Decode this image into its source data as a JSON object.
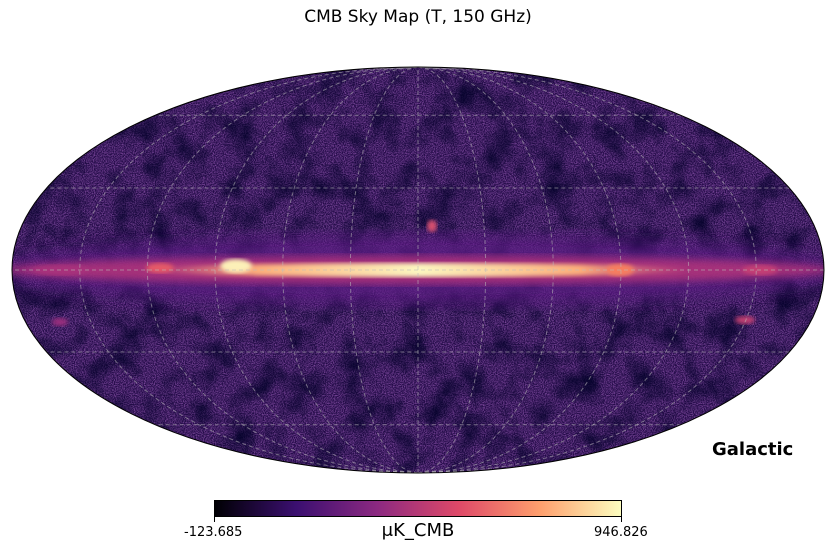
{
  "chart_data": {
    "type": "heatmap",
    "projection": "mollweide",
    "title": "CMB Sky Map (T, 150 GHz)",
    "coordinate_system": "Galactic",
    "colorbar": {
      "min": -123.685,
      "max": 946.826,
      "min_label": "-123.685",
      "max_label": "946.826",
      "unit": "μK_CMB",
      "colormap": "magma",
      "colors": [
        "#000004",
        "#3b0f70",
        "#8c2981",
        "#de4968",
        "#fe9f6d",
        "#fcfdbf"
      ]
    },
    "graticule": {
      "visible": true,
      "style": "dashed",
      "meridians_deg": [
        -180,
        -150,
        -120,
        -90,
        -60,
        -30,
        0,
        30,
        60,
        90,
        120,
        150,
        180
      ],
      "parallels_deg": [
        -60,
        -30,
        0,
        30,
        60
      ]
    },
    "features": [
      {
        "name": "galactic plane emission",
        "level": 0.9
      },
      {
        "name": "diffuse background",
        "level": 0.2
      }
    ]
  }
}
